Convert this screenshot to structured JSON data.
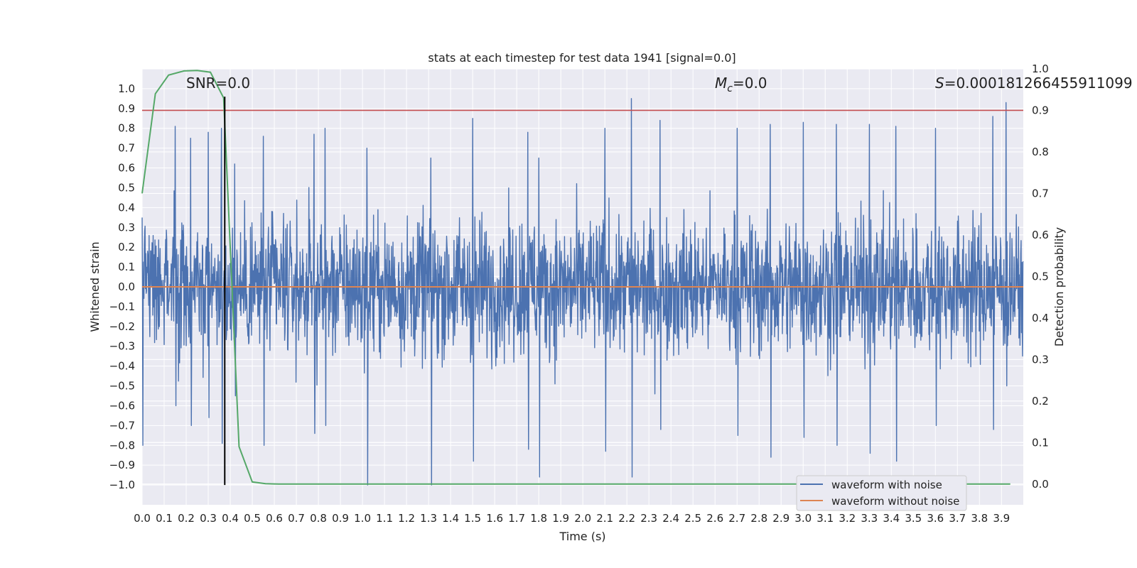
{
  "chart_data": {
    "type": "line",
    "title": "stats at each timestep for test data 1941 [signal=0.0]",
    "xlabel": "Time (s)",
    "ylabel": "Whitened strain",
    "y2label": "Detection probability",
    "xlim": [
      0.0,
      3.999
    ],
    "ylim": [
      -1.1,
      1.1
    ],
    "y2lim": [
      -0.05,
      1.0
    ],
    "x_ticks": [
      "0.0",
      "0.1",
      "0.2",
      "0.3",
      "0.4",
      "0.5",
      "0.6",
      "0.7",
      "0.8",
      "0.9",
      "1.0",
      "1.1",
      "1.2",
      "1.3",
      "1.4",
      "1.5",
      "1.6",
      "1.7",
      "1.8",
      "1.9",
      "2.0",
      "2.1",
      "2.2",
      "2.3",
      "2.4",
      "2.5",
      "2.6",
      "2.7",
      "2.8",
      "2.9",
      "3.0",
      "3.1",
      "3.2",
      "3.3",
      "3.4",
      "3.5",
      "3.6",
      "3.7",
      "3.8",
      "3.9"
    ],
    "y_ticks": [
      "1.0",
      "0.9",
      "0.8",
      "0.7",
      "0.6",
      "0.5",
      "0.4",
      "0.3",
      "0.2",
      "0.1",
      "0.0",
      "−0.1",
      "−0.2",
      "−0.3",
      "−0.4",
      "−0.5",
      "−0.6",
      "−0.7",
      "−0.8",
      "−0.9",
      "−1.0"
    ],
    "y2_ticks": [
      "1.0",
      "0.9",
      "0.8",
      "0.7",
      "0.6",
      "0.5",
      "0.4",
      "0.3",
      "0.2",
      "0.1",
      "0.0"
    ],
    "annotations": {
      "snr": "SNR=0.0",
      "mc_symbol": "M",
      "mc_sub": "c",
      "mc_value": "=0.0",
      "s_symbol": "S",
      "s_value": "=0.000181266455911099"
    },
    "threshold": 0.9,
    "marker_time": 0.375,
    "series": [
      {
        "name": "waveform with noise",
        "color": "#4c72b0",
        "description": "dense whitened noise, samples between about -1.0 and 0.95",
        "peaks": [
          [
            0.0,
            0.35,
            -0.8
          ],
          [
            0.15,
            0.81,
            -0.6
          ],
          [
            0.22,
            0.75,
            -0.7
          ],
          [
            0.3,
            0.78,
            -0.66
          ],
          [
            0.36,
            0.8,
            -0.79
          ],
          [
            0.42,
            0.62,
            -0.55
          ],
          [
            0.55,
            0.76,
            -0.8
          ],
          [
            0.78,
            0.77,
            -0.74
          ],
          [
            0.83,
            0.8,
            -0.7
          ],
          [
            1.02,
            0.7,
            -1.0
          ],
          [
            1.31,
            0.65,
            -1.0
          ],
          [
            1.5,
            0.85,
            -0.88
          ],
          [
            1.75,
            0.78,
            -0.82
          ],
          [
            1.8,
            0.65,
            -0.96
          ],
          [
            2.1,
            0.8,
            -0.83
          ],
          [
            2.22,
            0.95,
            -0.96
          ],
          [
            2.35,
            0.84,
            -0.72
          ],
          [
            2.7,
            0.8,
            -0.75
          ],
          [
            2.85,
            0.82,
            -0.86
          ],
          [
            3.0,
            0.83,
            -0.76
          ],
          [
            3.15,
            0.82,
            -0.8
          ],
          [
            3.3,
            0.82,
            -0.84
          ],
          [
            3.42,
            0.81,
            -0.88
          ],
          [
            3.6,
            0.8,
            -0.7
          ],
          [
            3.86,
            0.86,
            -0.72
          ],
          [
            3.92,
            0.93,
            -0.5
          ]
        ]
      },
      {
        "name": "waveform without noise",
        "color": "#dd8452",
        "values": "constant 0.0"
      },
      {
        "name": "detection probability",
        "color": "#55a868",
        "axis": "right",
        "x": [
          0.0,
          0.06,
          0.12,
          0.19,
          0.25,
          0.31,
          0.37,
          0.44,
          0.5,
          0.56,
          0.62,
          1.0,
          2.0,
          3.0,
          3.94
        ],
        "values": [
          0.7,
          0.94,
          0.985,
          0.995,
          0.996,
          0.992,
          0.93,
          0.09,
          0.005,
          0.001,
          0.0,
          0.0,
          0.0,
          0.0,
          0.0
        ]
      }
    ],
    "legend": {
      "placement": "bottom-right",
      "entries": [
        "waveform with noise",
        "waveform without noise"
      ]
    }
  },
  "colors": {
    "plot_bg": "#eaeaf2",
    "grid": "#ffffff",
    "threshold": "#c44e52",
    "marker": "#000000",
    "text": "#222222"
  }
}
